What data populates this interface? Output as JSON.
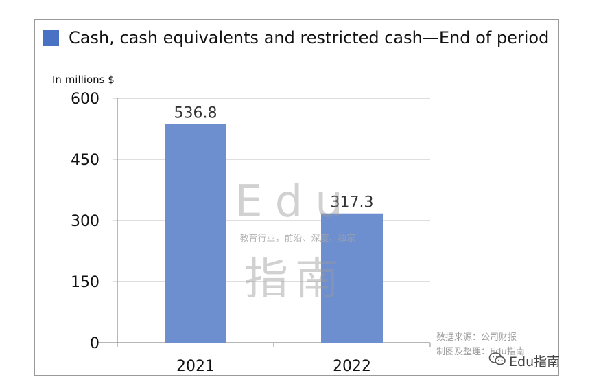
{
  "legend": {
    "label": "Cash, cash equivalents and restricted cash—End of period",
    "color": "#4a72c4"
  },
  "unit_label": "In millions $",
  "chart_data": {
    "type": "bar",
    "categories": [
      "2021",
      "2022"
    ],
    "series": [
      {
        "name": "Cash, cash equivalents and restricted cash—End of period",
        "values": [
          536.8,
          317.3
        ]
      }
    ],
    "data_labels": [
      "536.8",
      "317.3"
    ],
    "y_ticks": [
      0,
      150,
      300,
      450,
      600
    ],
    "ylim": [
      0,
      600
    ],
    "grid": true,
    "bar_color": "#6d8fd0"
  },
  "watermark": {
    "line1": "Edu",
    "line2": "教育行业，前沿、深度、独家",
    "line3": "指南"
  },
  "source": {
    "line1": "数据来源：公司财报",
    "line2": "制图及整理：Edu指南"
  },
  "brand": {
    "text": "Edu指南",
    "icon": "wechat-icon"
  }
}
